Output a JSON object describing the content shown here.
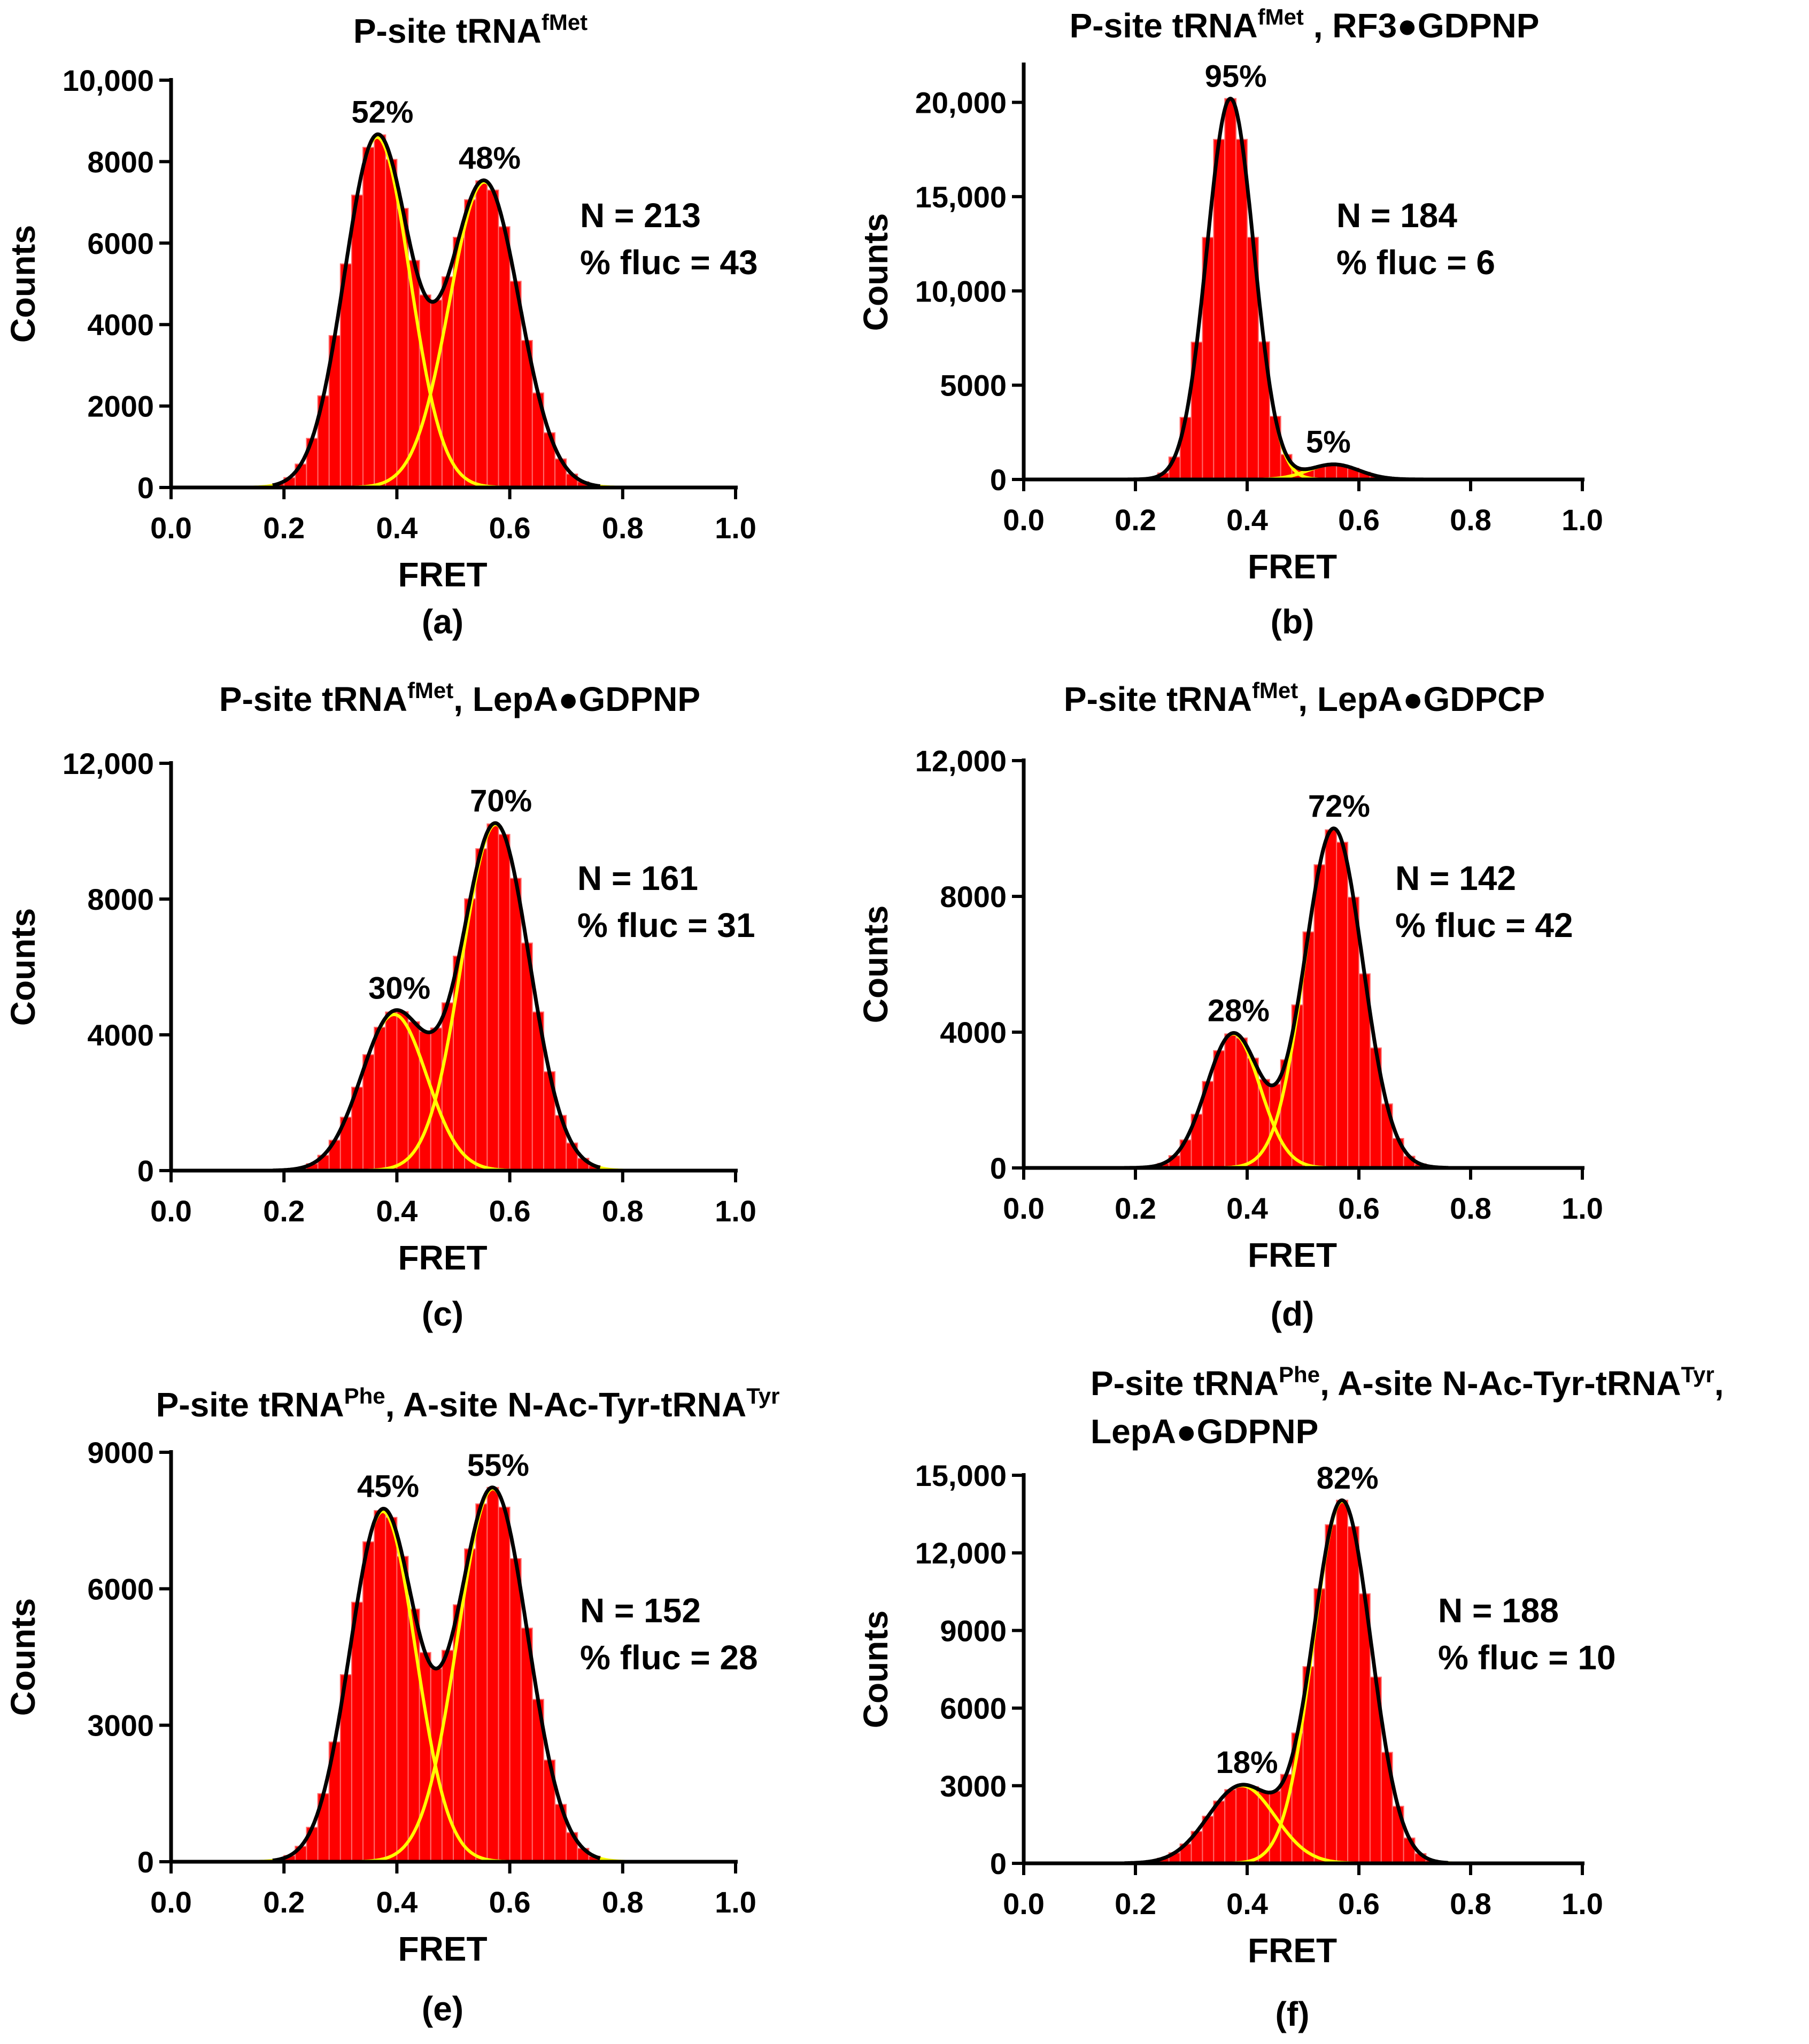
{
  "chart_data": [
    {
      "id": "a",
      "type": "histogram",
      "title": [
        {
          "text": "P-site tRNA"
        },
        {
          "text": "fMet",
          "sup": true
        }
      ],
      "xlabel": "FRET",
      "ylabel": "Counts",
      "panel_label": "(a)",
      "xlim": [
        0,
        1
      ],
      "ylim": [
        0,
        10000
      ],
      "xticks": [
        0.0,
        0.2,
        0.4,
        0.6,
        0.8,
        1.0
      ],
      "xtick_labels": [
        "0.0",
        "0.2",
        "0.4",
        "0.6",
        "0.8",
        "1.0"
      ],
      "yticks": [
        0,
        2000,
        4000,
        6000,
        8000,
        10000
      ],
      "ytick_labels": [
        "0",
        "2000",
        "4000",
        "6000",
        "8000",
        "10,000"
      ],
      "bin_width": 0.02,
      "peaks": [
        {
          "center": 0.365,
          "sigma": 0.058,
          "amplitude": 8600,
          "label": "52%"
        },
        {
          "center": 0.555,
          "sigma": 0.062,
          "amplitude": 7500,
          "label": "48%"
        }
      ],
      "stats": [
        "N = 213",
        "% fluc = 43"
      ]
    },
    {
      "id": "b",
      "type": "histogram",
      "title": [
        {
          "text": "P-site tRNA"
        },
        {
          "text": "fMet",
          "sup": true
        },
        {
          "text": " , RF3●GDPNP"
        }
      ],
      "xlabel": "FRET",
      "ylabel": "Counts",
      "panel_label": "(b)",
      "xlim": [
        0,
        1
      ],
      "ylim": [
        0,
        22000
      ],
      "xticks": [
        0.0,
        0.2,
        0.4,
        0.6,
        0.8,
        1.0
      ],
      "xtick_labels": [
        "0.0",
        "0.2",
        "0.4",
        "0.6",
        "0.8",
        "1.0"
      ],
      "yticks": [
        0,
        5000,
        10000,
        15000,
        20000
      ],
      "ytick_labels": [
        "0",
        "5000",
        "10,000",
        "15,000",
        "20,000"
      ],
      "bin_width": 0.02,
      "peaks": [
        {
          "center": 0.37,
          "sigma": 0.042,
          "amplitude": 20200,
          "label": "95%"
        },
        {
          "center": 0.555,
          "sigma": 0.045,
          "amplitude": 800,
          "label": "5%"
        }
      ],
      "stats": [
        "N = 184",
        "% fluc = 6"
      ]
    },
    {
      "id": "c",
      "type": "histogram",
      "title": [
        {
          "text": "P-site tRNA"
        },
        {
          "text": "fMet",
          "sup": true
        },
        {
          "text": ", LepA●GDPNP"
        }
      ],
      "xlabel": "FRET",
      "ylabel": "Counts",
      "panel_label": "(c)",
      "xlim": [
        0,
        1
      ],
      "ylim": [
        0,
        12000
      ],
      "xticks": [
        0.0,
        0.2,
        0.4,
        0.6,
        0.8,
        1.0
      ],
      "xtick_labels": [
        "0.0",
        "0.2",
        "0.4",
        "0.6",
        "0.8",
        "1.0"
      ],
      "yticks": [
        0,
        4000,
        8000,
        12000
      ],
      "ytick_labels": [
        "0",
        "4000",
        "8000",
        "12,000"
      ],
      "bin_width": 0.02,
      "peaks": [
        {
          "center": 0.395,
          "sigma": 0.058,
          "amplitude": 4600,
          "label": "30%"
        },
        {
          "center": 0.575,
          "sigma": 0.06,
          "amplitude": 10200,
          "label": "70%"
        }
      ],
      "stats": [
        "N = 161",
        "% fluc = 31"
      ]
    },
    {
      "id": "d",
      "type": "histogram",
      "title": [
        {
          "text": "P-site tRNA"
        },
        {
          "text": "fMet",
          "sup": true
        },
        {
          "text": ", LepA●GDPCP"
        }
      ],
      "xlabel": "FRET",
      "ylabel": "Counts",
      "panel_label": "(d)",
      "xlim": [
        0,
        1
      ],
      "ylim": [
        0,
        12000
      ],
      "xticks": [
        0.0,
        0.2,
        0.4,
        0.6,
        0.8,
        1.0
      ],
      "xtick_labels": [
        "0.0",
        "0.2",
        "0.4",
        "0.6",
        "0.8",
        "1.0"
      ],
      "yticks": [
        0,
        4000,
        8000,
        12000
      ],
      "ytick_labels": [
        "0",
        "4000",
        "8000",
        "12,000"
      ],
      "bin_width": 0.02,
      "peaks": [
        {
          "center": 0.375,
          "sigma": 0.048,
          "amplitude": 3950,
          "label": "28%"
        },
        {
          "center": 0.555,
          "sigma": 0.052,
          "amplitude": 10000,
          "label": "72%"
        }
      ],
      "stats": [
        "N = 142",
        "% fluc = 42"
      ]
    },
    {
      "id": "e",
      "type": "histogram",
      "title": [
        {
          "text": "P-site tRNA"
        },
        {
          "text": "Phe",
          "sup": true
        },
        {
          "text": ", A-site N-Ac-Tyr-tRNA"
        },
        {
          "text": "Tyr",
          "sup": true
        }
      ],
      "xlabel": "FRET",
      "ylabel": "Counts",
      "panel_label": "(e)",
      "xlim": [
        0,
        1
      ],
      "ylim": [
        0,
        9000
      ],
      "xticks": [
        0.0,
        0.2,
        0.4,
        0.6,
        0.8,
        1.0
      ],
      "xtick_labels": [
        "0.0",
        "0.2",
        "0.4",
        "0.6",
        "0.8",
        "1.0"
      ],
      "yticks": [
        0,
        3000,
        6000,
        9000
      ],
      "ytick_labels": [
        "0",
        "3000",
        "6000",
        "9000"
      ],
      "bin_width": 0.02,
      "peaks": [
        {
          "center": 0.375,
          "sigma": 0.058,
          "amplitude": 7700,
          "label": "45%"
        },
        {
          "center": 0.57,
          "sigma": 0.062,
          "amplitude": 8200,
          "label": "55%"
        }
      ],
      "stats": [
        "N = 152",
        "% fluc = 28"
      ]
    },
    {
      "id": "f",
      "type": "histogram",
      "title": [
        {
          "text": "P-site tRNA"
        },
        {
          "text": "Phe",
          "sup": true
        },
        {
          "text": ", A-site N-Ac-Tyr-tRNA"
        },
        {
          "text": "Tyr",
          "sup": true
        },
        {
          "text": ","
        }
      ],
      "title_line2": "LepA●GDPNP",
      "xlabel": "FRET",
      "ylabel": "Counts",
      "panel_label": "(f)",
      "xlim": [
        0,
        1
      ],
      "ylim": [
        0,
        15000
      ],
      "xticks": [
        0.0,
        0.2,
        0.4,
        0.6,
        0.8,
        1.0
      ],
      "xtick_labels": [
        "0.0",
        "0.2",
        "0.4",
        "0.6",
        "0.8",
        "1.0"
      ],
      "yticks": [
        0,
        3000,
        6000,
        9000,
        12000,
        15000
      ],
      "ytick_labels": [
        "0",
        "3000",
        "6000",
        "9000",
        "12,000",
        "15,000"
      ],
      "bin_width": 0.02,
      "peaks": [
        {
          "center": 0.39,
          "sigma": 0.06,
          "amplitude": 3000,
          "label": "18%"
        },
        {
          "center": 0.57,
          "sigma": 0.052,
          "amplitude": 14000,
          "label": "82%"
        }
      ],
      "stats": [
        "N = 188",
        "% fluc = 10"
      ]
    }
  ],
  "colors": {
    "bars": "#ff0000",
    "bar_edge": "#ff6a6a",
    "component_fit": "#ffff00",
    "total_fit": "#000000",
    "axis": "#000000"
  }
}
